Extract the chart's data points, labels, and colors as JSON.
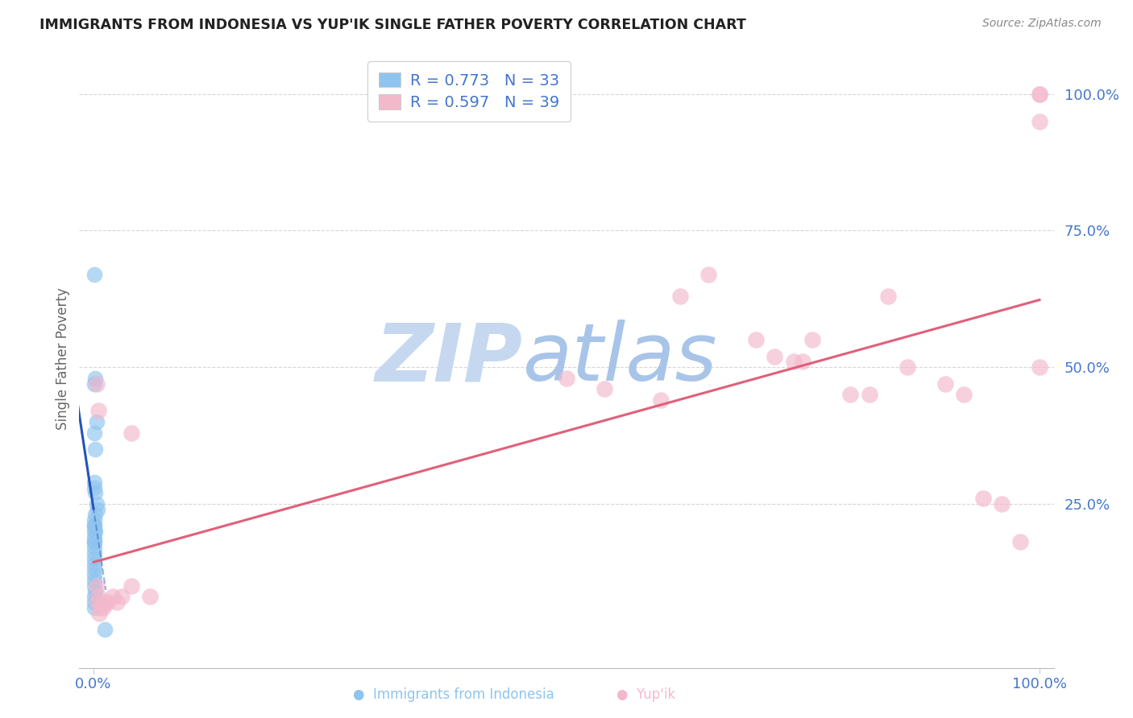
{
  "title": "IMMIGRANTS FROM INDONESIA VS YUP'IK SINGLE FATHER POVERTY CORRELATION CHART",
  "source": "Source: ZipAtlas.com",
  "xlabel_blue": "Immigrants from Indonesia",
  "xlabel_pink": "Yup'ik",
  "ylabel": "Single Father Poverty",
  "legend_blue_r": "R = 0.773",
  "legend_blue_n": "N = 33",
  "legend_pink_r": "R = 0.597",
  "legend_pink_n": "N = 39",
  "blue_color": "#8ec4ef",
  "pink_color": "#f4b8cb",
  "blue_line_color": "#2255bb",
  "pink_line_color": "#e0607a",
  "bg_color": "#ffffff",
  "label_color": "#4477cc",
  "watermark_zip_color": "#c5d8f0",
  "watermark_atlas_color": "#a8c4e8",
  "blue_x": [
    0.001,
    0.002,
    0.001,
    0.003,
    0.001,
    0.002,
    0.001,
    0.001,
    0.002,
    0.003,
    0.004,
    0.002,
    0.001,
    0.001,
    0.001,
    0.001,
    0.002,
    0.001,
    0.001,
    0.001,
    0.001,
    0.001,
    0.001,
    0.001,
    0.001,
    0.001,
    0.001,
    0.001,
    0.002,
    0.001,
    0.001,
    0.001,
    0.012
  ],
  "blue_y": [
    0.67,
    0.48,
    0.47,
    0.4,
    0.38,
    0.35,
    0.29,
    0.28,
    0.27,
    0.25,
    0.24,
    0.23,
    0.22,
    0.21,
    0.21,
    0.2,
    0.2,
    0.19,
    0.18,
    0.18,
    0.17,
    0.16,
    0.15,
    0.14,
    0.13,
    0.12,
    0.11,
    0.1,
    0.09,
    0.08,
    0.07,
    0.06,
    0.02
  ],
  "pink_x": [
    0.003,
    0.005,
    0.04,
    0.5,
    0.54,
    0.6,
    0.62,
    0.65,
    0.7,
    0.72,
    0.74,
    0.75,
    0.76,
    0.8,
    0.82,
    0.84,
    0.86,
    0.9,
    0.92,
    0.94,
    0.96,
    0.98,
    1.0,
    1.0,
    1.0,
    1.0,
    0.003,
    0.004,
    0.005,
    0.006,
    0.008,
    0.01,
    0.012,
    0.015,
    0.02,
    0.025,
    0.03,
    0.04,
    0.06
  ],
  "pink_y": [
    0.47,
    0.42,
    0.38,
    0.48,
    0.46,
    0.44,
    0.63,
    0.67,
    0.55,
    0.52,
    0.51,
    0.51,
    0.55,
    0.45,
    0.45,
    0.63,
    0.5,
    0.47,
    0.45,
    0.26,
    0.25,
    0.18,
    1.0,
    1.0,
    0.95,
    0.5,
    0.1,
    0.07,
    0.08,
    0.05,
    0.06,
    0.06,
    0.07,
    0.07,
    0.08,
    0.07,
    0.08,
    0.1,
    0.08
  ],
  "xlim": [
    -0.015,
    1.015
  ],
  "ylim": [
    -0.05,
    1.08
  ],
  "yticks": [
    1.0,
    0.75,
    0.5,
    0.25
  ],
  "xticks": [
    0.0,
    1.0
  ]
}
